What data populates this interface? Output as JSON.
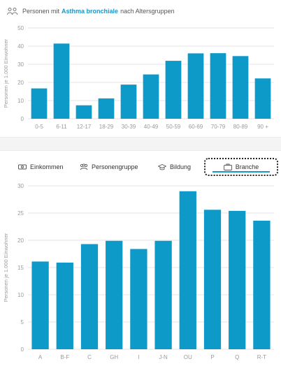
{
  "header": {
    "prefix": "Personen mit",
    "highlight": "Asthma bronchiale",
    "suffix": "nach Altersgruppen"
  },
  "tabs": [
    {
      "label": "Einkommen",
      "icon": "money-icon"
    },
    {
      "label": "Personengruppe",
      "icon": "people-group-icon"
    },
    {
      "label": "Bildung",
      "icon": "graduation-cap-icon"
    },
    {
      "label": "Branche",
      "icon": "briefcase-icon",
      "active": true
    }
  ],
  "colors": {
    "bar": "#0d9ac9",
    "grid": "#e6e6e6",
    "axis_text": "#9a9a9a",
    "accent": "#1b97c7"
  },
  "chart_data": [
    {
      "type": "bar",
      "categories": [
        "0-5",
        "6-11",
        "12-17",
        "18-29",
        "30-39",
        "40-49",
        "50-59",
        "60-69",
        "70-79",
        "80-89",
        "90 +"
      ],
      "values": [
        16.7,
        41.4,
        7.4,
        11.2,
        18.8,
        24.4,
        31.9,
        36.0,
        36.1,
        34.5,
        22.2
      ],
      "ylabel": "Personen je 1.000 Einwohner",
      "ylim": [
        0,
        50
      ],
      "yticks": [
        0,
        10,
        20,
        30,
        40,
        50
      ],
      "grid": true
    },
    {
      "type": "bar",
      "categories": [
        "A",
        "B-F",
        "C",
        "GH",
        "I",
        "J-N",
        "OU",
        "P",
        "Q",
        "R-T"
      ],
      "values": [
        16.1,
        15.9,
        19.3,
        19.9,
        18.4,
        19.9,
        29.0,
        25.6,
        25.4,
        23.6
      ],
      "ylabel": "Personen je 1.000 Einwohner",
      "ylim": [
        0,
        30
      ],
      "yticks": [
        0,
        5,
        10,
        15,
        20,
        25,
        30
      ],
      "grid": true
    }
  ]
}
